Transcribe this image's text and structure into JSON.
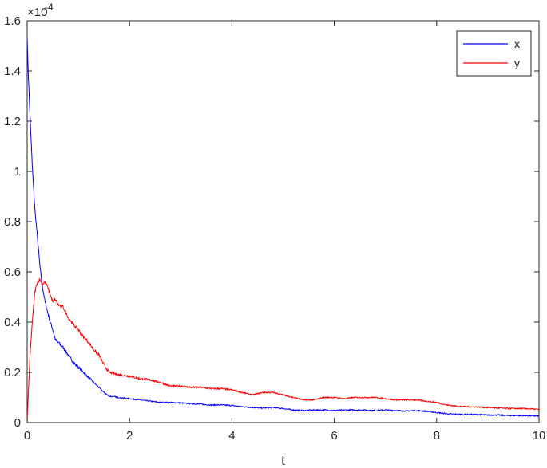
{
  "chart_data": {
    "type": "line",
    "title": "",
    "xlabel": "t",
    "ylabel": "",
    "y_multiplier_label": "×10",
    "y_multiplier_exponent": "-4",
    "xlim": [
      0,
      10
    ],
    "ylim": [
      0,
      1.6
    ],
    "xticks": [
      "0",
      "2",
      "4",
      "6",
      "8",
      "10"
    ],
    "yticks": [
      "0",
      "0.2",
      "0.4",
      "0.6",
      "0.8",
      "1",
      "1.2",
      "1.4",
      "1.6"
    ],
    "grid": false,
    "legend_position": "top-right",
    "series": [
      {
        "name": "x",
        "color": "#0000ff",
        "points": [
          [
            0,
            1.53
          ],
          [
            0.02,
            1.4
          ],
          [
            0.05,
            1.25
          ],
          [
            0.1,
            1.02
          ],
          [
            0.15,
            0.85
          ],
          [
            0.2,
            0.74
          ],
          [
            0.25,
            0.62
          ],
          [
            0.3,
            0.54
          ],
          [
            0.35,
            0.48
          ],
          [
            0.4,
            0.44
          ],
          [
            0.45,
            0.4
          ],
          [
            0.5,
            0.37
          ],
          [
            0.55,
            0.33
          ],
          [
            0.6,
            0.32
          ],
          [
            0.7,
            0.3
          ],
          [
            0.8,
            0.27
          ],
          [
            0.9,
            0.24
          ],
          [
            1.0,
            0.22
          ],
          [
            1.1,
            0.2
          ],
          [
            1.2,
            0.18
          ],
          [
            1.3,
            0.16
          ],
          [
            1.4,
            0.14
          ],
          [
            1.5,
            0.12
          ],
          [
            1.6,
            0.105
          ],
          [
            1.8,
            0.1
          ],
          [
            2.0,
            0.095
          ],
          [
            2.2,
            0.09
          ],
          [
            2.4,
            0.085
          ],
          [
            2.6,
            0.08
          ],
          [
            2.8,
            0.08
          ],
          [
            3.0,
            0.078
          ],
          [
            3.2,
            0.075
          ],
          [
            3.4,
            0.073
          ],
          [
            3.6,
            0.07
          ],
          [
            3.8,
            0.07
          ],
          [
            4.0,
            0.068
          ],
          [
            4.2,
            0.063
          ],
          [
            4.4,
            0.06
          ],
          [
            4.6,
            0.058
          ],
          [
            4.8,
            0.06
          ],
          [
            5.0,
            0.056
          ],
          [
            5.2,
            0.05
          ],
          [
            5.4,
            0.048
          ],
          [
            5.6,
            0.05
          ],
          [
            5.8,
            0.05
          ],
          [
            6.0,
            0.048
          ],
          [
            6.2,
            0.05
          ],
          [
            6.4,
            0.05
          ],
          [
            6.6,
            0.05
          ],
          [
            6.8,
            0.048
          ],
          [
            7.0,
            0.05
          ],
          [
            7.2,
            0.048
          ],
          [
            7.4,
            0.046
          ],
          [
            7.6,
            0.048
          ],
          [
            7.8,
            0.045
          ],
          [
            8.0,
            0.04
          ],
          [
            8.2,
            0.035
          ],
          [
            8.4,
            0.033
          ],
          [
            8.6,
            0.032
          ],
          [
            8.8,
            0.032
          ],
          [
            9.0,
            0.03
          ],
          [
            9.2,
            0.03
          ],
          [
            9.4,
            0.028
          ],
          [
            9.6,
            0.028
          ],
          [
            9.8,
            0.027
          ],
          [
            10.0,
            0.026
          ]
        ]
      },
      {
        "name": "y",
        "color": "#ff0000",
        "points": [
          [
            0,
            0.0
          ],
          [
            0.03,
            0.15
          ],
          [
            0.06,
            0.28
          ],
          [
            0.1,
            0.4
          ],
          [
            0.15,
            0.52
          ],
          [
            0.2,
            0.56
          ],
          [
            0.25,
            0.57
          ],
          [
            0.3,
            0.55
          ],
          [
            0.35,
            0.56
          ],
          [
            0.4,
            0.54
          ],
          [
            0.45,
            0.51
          ],
          [
            0.5,
            0.48
          ],
          [
            0.55,
            0.49
          ],
          [
            0.6,
            0.47
          ],
          [
            0.7,
            0.46
          ],
          [
            0.8,
            0.42
          ],
          [
            0.9,
            0.39
          ],
          [
            1.0,
            0.37
          ],
          [
            1.1,
            0.34
          ],
          [
            1.2,
            0.32
          ],
          [
            1.3,
            0.29
          ],
          [
            1.4,
            0.27
          ],
          [
            1.5,
            0.23
          ],
          [
            1.6,
            0.2
          ],
          [
            1.8,
            0.19
          ],
          [
            2.0,
            0.185
          ],
          [
            2.2,
            0.175
          ],
          [
            2.4,
            0.17
          ],
          [
            2.6,
            0.16
          ],
          [
            2.8,
            0.145
          ],
          [
            3.0,
            0.145
          ],
          [
            3.2,
            0.14
          ],
          [
            3.4,
            0.14
          ],
          [
            3.6,
            0.135
          ],
          [
            3.8,
            0.135
          ],
          [
            4.0,
            0.13
          ],
          [
            4.2,
            0.12
          ],
          [
            4.4,
            0.11
          ],
          [
            4.6,
            0.12
          ],
          [
            4.8,
            0.12
          ],
          [
            5.0,
            0.11
          ],
          [
            5.2,
            0.1
          ],
          [
            5.4,
            0.09
          ],
          [
            5.6,
            0.09
          ],
          [
            5.8,
            0.1
          ],
          [
            6.0,
            0.1
          ],
          [
            6.2,
            0.095
          ],
          [
            6.4,
            0.1
          ],
          [
            6.6,
            0.1
          ],
          [
            6.8,
            0.1
          ],
          [
            7.0,
            0.095
          ],
          [
            7.2,
            0.09
          ],
          [
            7.4,
            0.09
          ],
          [
            7.6,
            0.09
          ],
          [
            7.8,
            0.085
          ],
          [
            8.0,
            0.08
          ],
          [
            8.2,
            0.07
          ],
          [
            8.4,
            0.065
          ],
          [
            8.6,
            0.063
          ],
          [
            8.8,
            0.062
          ],
          [
            9.0,
            0.06
          ],
          [
            9.2,
            0.058
          ],
          [
            9.4,
            0.056
          ],
          [
            9.6,
            0.056
          ],
          [
            9.8,
            0.055
          ],
          [
            10.0,
            0.052
          ]
        ]
      }
    ]
  }
}
